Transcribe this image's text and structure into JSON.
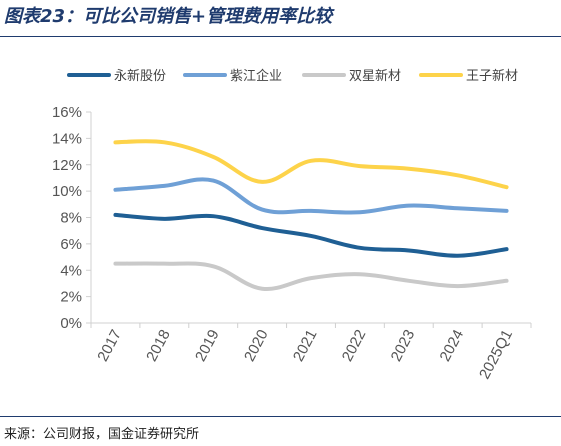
{
  "title": "图表23：可比公司销售+管理费用率比较",
  "source": "来源：公司财报，国金证券研究所",
  "chart_data": {
    "type": "line",
    "categories": [
      "2017",
      "2018",
      "2019",
      "2020",
      "2021",
      "2022",
      "2023",
      "2024",
      "2025Q1"
    ],
    "ylim": [
      0,
      16
    ],
    "yticks": [
      0,
      2,
      4,
      6,
      8,
      10,
      12,
      14,
      16
    ],
    "ytick_labels": [
      "0%",
      "2%",
      "4%",
      "6%",
      "8%",
      "10%",
      "12%",
      "14%",
      "16%"
    ],
    "yunit": "%",
    "grid": false,
    "legend_position": "top",
    "series": [
      {
        "name": "永新股份",
        "color": "#1f5f94",
        "values": [
          8.2,
          7.9,
          8.1,
          7.2,
          6.6,
          5.7,
          5.5,
          5.1,
          5.6
        ]
      },
      {
        "name": "紫江企业",
        "color": "#6fa0d6",
        "values": [
          10.1,
          10.4,
          10.8,
          8.6,
          8.5,
          8.4,
          8.9,
          8.7,
          8.5
        ]
      },
      {
        "name": "双星新材",
        "color": "#c9c9c9",
        "values": [
          4.5,
          4.5,
          4.3,
          2.6,
          3.4,
          3.7,
          3.2,
          2.8,
          3.2
        ]
      },
      {
        "name": "王子新材",
        "color": "#fdd34a",
        "values": [
          13.7,
          13.7,
          12.6,
          10.7,
          12.3,
          11.9,
          11.7,
          11.2,
          10.3
        ]
      }
    ]
  }
}
